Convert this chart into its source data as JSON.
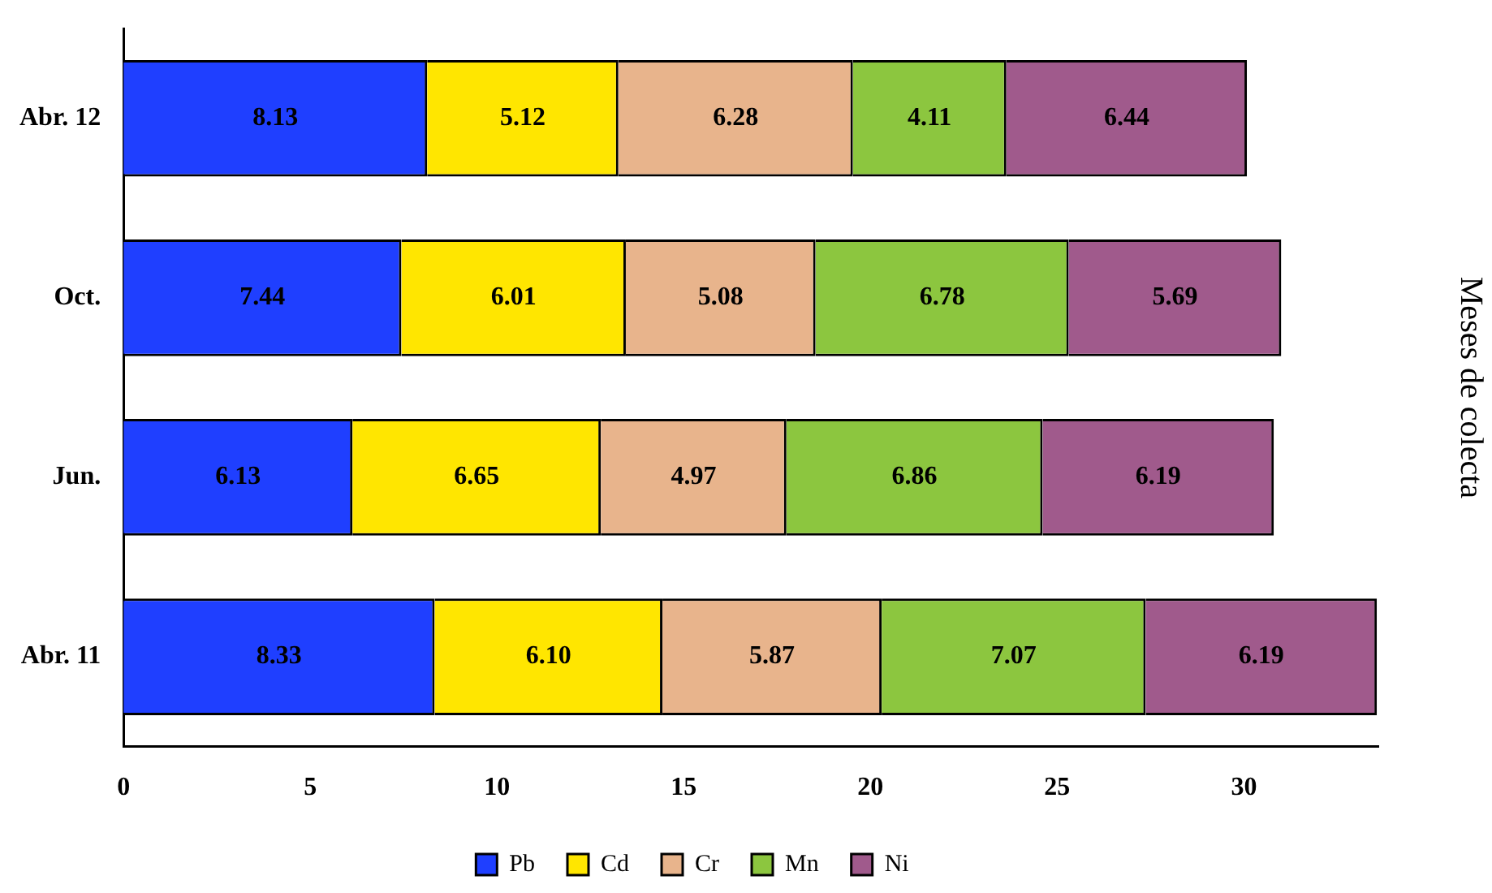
{
  "chart_data": {
    "type": "bar",
    "orientation": "horizontal",
    "stacked": true,
    "ylabel": "Meses de colecta",
    "categories": [
      "Abr. 12",
      "Oct.",
      "Jun.",
      "Abr. 11"
    ],
    "series": [
      {
        "name": "Pb",
        "color": "#1f3fff",
        "values": [
          8.13,
          7.44,
          6.13,
          8.33
        ],
        "value_labels": [
          "8.13",
          "7.44",
          "6.13",
          "8.33"
        ]
      },
      {
        "name": "Cd",
        "color": "#ffe600",
        "values": [
          5.12,
          6.01,
          6.65,
          6.1
        ],
        "value_labels": [
          "5.12",
          "6.01",
          "6.65",
          "6.10"
        ]
      },
      {
        "name": "Cr",
        "color": "#e8b48c",
        "values": [
          6.28,
          5.08,
          4.97,
          5.87
        ],
        "value_labels": [
          "6.28",
          "5.08",
          "4.97",
          "5.87"
        ]
      },
      {
        "name": "Mn",
        "color": "#8cc63f",
        "values": [
          4.11,
          6.78,
          6.86,
          7.07
        ],
        "value_labels": [
          "4.11",
          "6.78",
          "6.86",
          "7.07"
        ]
      },
      {
        "name": "Ni",
        "color": "#a05a8c",
        "values": [
          6.44,
          5.69,
          6.19,
          6.19
        ],
        "value_labels": [
          "6.44",
          "5.69",
          "6.19",
          "6.19"
        ]
      }
    ],
    "xlim": [
      0,
      33.6
    ],
    "xticks": [
      0,
      5,
      10,
      15,
      20,
      25,
      30
    ],
    "grid": false,
    "legend": "bottom"
  }
}
